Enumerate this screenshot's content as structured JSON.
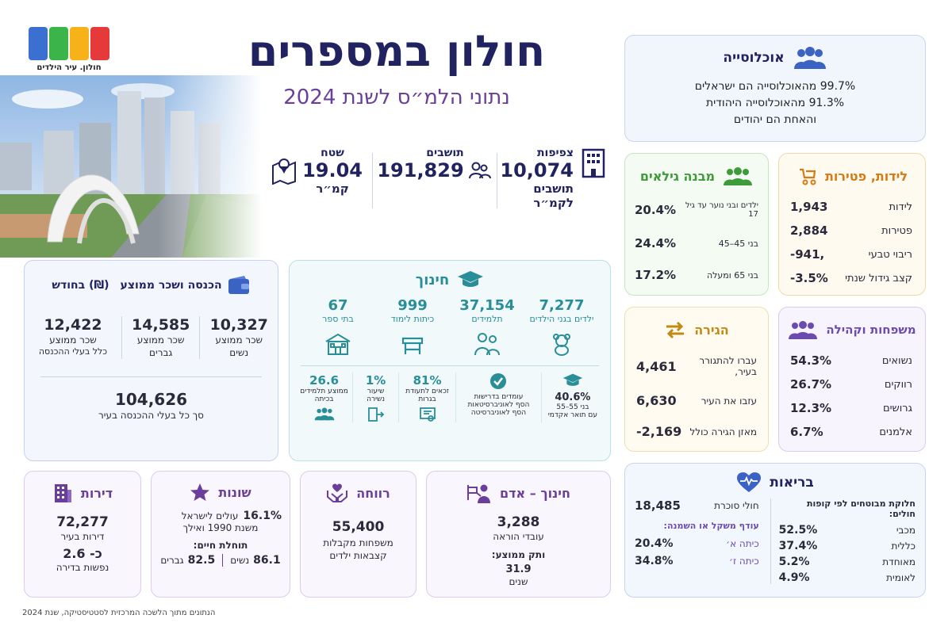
{
  "logo": {
    "text": "חולון",
    "tagline": "חולון. עיר הילדים"
  },
  "header": {
    "title": "חולון במספרים",
    "subtitle": "נתוני הלמ״ס לשנת 2024"
  },
  "stats": {
    "density": {
      "label": "צפיפות",
      "value": "10,074",
      "unit1": "תושבים",
      "unit2": "לקמ״ר"
    },
    "residents": {
      "label": "תושבים",
      "value": "191,829"
    },
    "area": {
      "label": "שטח",
      "value": "19.04",
      "unit": "קמ״ר"
    }
  },
  "population": {
    "title": "אוכלוסייה",
    "lines": [
      "99.7% מהאוכלוסייה הם ישראלים",
      "91.3% מהאוכלוסייה היהודית",
      "והאחת הם יהודים"
    ]
  },
  "births": {
    "title": "לידות, פטירות",
    "rows": [
      {
        "label": "לידות",
        "value": "1,943"
      },
      {
        "label": "פטירות",
        "value": "2,884"
      },
      {
        "label": "ריבוי טבעי",
        "value": "-941,"
      },
      {
        "label": "קצב גידול שנתי",
        "value": "-3.5%"
      }
    ]
  },
  "ages": {
    "title": "מבנה גילאים",
    "rows": [
      {
        "label": "ילדים ובני נוער עד גיל 17",
        "value": "20.4%"
      },
      {
        "label": "בני 45–45",
        "value": "24.4%"
      },
      {
        "label": "בני 65 ומעלה",
        "value": "17.2%"
      }
    ]
  },
  "families": {
    "title": "משפחות וקהילה",
    "rows": [
      {
        "label": "נשואים",
        "value": "54.3%"
      },
      {
        "label": "רווקים",
        "value": "26.7%"
      },
      {
        "label": "גרושים",
        "value": "12.3%"
      },
      {
        "label": "אלמנים",
        "value": "6.7%"
      }
    ]
  },
  "migration": {
    "title": "הגירה",
    "rows": [
      {
        "label": "עברו להתגורר בעיר,",
        "value": "4,461"
      },
      {
        "label": "עזבו את העיר",
        "value": "6,630"
      },
      {
        "label": "מאזן הגירה כולל",
        "value": "-2,169"
      }
    ]
  },
  "income": {
    "title": "הכנסה ושכר ממוצע",
    "title_suffix": "(₪) בחודש",
    "items": [
      {
        "value": "10,327",
        "l1": "שכר ממוצע",
        "l2": "נשים"
      },
      {
        "value": "14,585",
        "l1": "שכר ממוצע",
        "l2": "גברים"
      },
      {
        "value": "12,422",
        "l1": "שכר ממוצע",
        "l2": "כלל בעלי ההכנסה"
      }
    ],
    "total": {
      "value": "104,626",
      "label": "סך כל בעלי ההכנסה בעיר"
    }
  },
  "education": {
    "title": "חינוך",
    "top": [
      {
        "value": "7,277",
        "label": "ילדים בגני הילדים"
      },
      {
        "value": "37,154",
        "label": "תלמידים"
      },
      {
        "value": "999",
        "label": "כיתות לימוד"
      },
      {
        "value": "67",
        "label": "בתי ספר"
      }
    ],
    "bottom": [
      {
        "value": "40.6%",
        "l1": "בני 55–55",
        "l2": "עם תואר אקדמי"
      },
      {
        "value": "",
        "l1": "עומדים בדרישות",
        "l2": "הסף לאוניברסיטאות",
        "l3": "הסף לאוניברסיטה"
      },
      {
        "value": "81%",
        "l1": "זכאים לתעודת",
        "l2": "בגרות"
      },
      {
        "value": "1%",
        "l1": "שיעור",
        "l2": "נשירה"
      },
      {
        "value": "26.6",
        "l1": "ממוצע תלמידים",
        "l2": "בכיתה"
      }
    ]
  },
  "health": {
    "title": "בריאות",
    "funds_title": "חלוקת מבוטחים לפי קופות חולים:",
    "funds": [
      {
        "label": "מכבי",
        "value": "52.5%"
      },
      {
        "label": "כללית",
        "value": "37.4%"
      },
      {
        "label": "מאוחדת",
        "value": "5.2%"
      },
      {
        "label": "לאומית",
        "value": "4.9%"
      }
    ],
    "diabetes": {
      "value": "18,485",
      "label": "חולי סוכרת"
    },
    "overweight_title": "עודף משקל או השמנה:",
    "overweight": [
      {
        "label": "כיתה א׳",
        "value": "20.4%"
      },
      {
        "label": "כיתה ז׳",
        "value": "34.8%"
      }
    ]
  },
  "apartments": {
    "title": "דירות",
    "value": "72,277",
    "label": "דירות בעיר",
    "value2": "כ- 2.6",
    "label2": "נפשות בדירה"
  },
  "misc": {
    "title": "שונות",
    "immig_value": "16.1%",
    "immig_l1": "עולים לישראל",
    "immig_l2": "משנת 1990 ואילך",
    "life_title": "תוחלת חיים:",
    "men_value": "82.5",
    "men_label": "גברים",
    "women_value": "86.1",
    "women_label": "נשים"
  },
  "welfare": {
    "title": "רווחה",
    "value": "55,400",
    "l1": "משפחות מקבלות",
    "l2": "קצבאות ילדים"
  },
  "staff": {
    "title": "חינוך – אדם",
    "value": "3,288",
    "label": "עובדי הוראה",
    "seniority_title": "ותק ממוצע:",
    "seniority_value": "31.9",
    "seniority_unit": "שנים"
  },
  "footer": "הנתונים מתוך הלשכה המרכזית לסטטיסטיקה, שנת 2024",
  "colors": {
    "navy": "#20235f",
    "purple": "#6a3f9b",
    "blue": "#3b63c4",
    "teal": "#2a8e98",
    "green": "#3e9b3a",
    "orange": "#d77a12",
    "gold": "#c18a14",
    "violet": "#6b4bb0"
  }
}
